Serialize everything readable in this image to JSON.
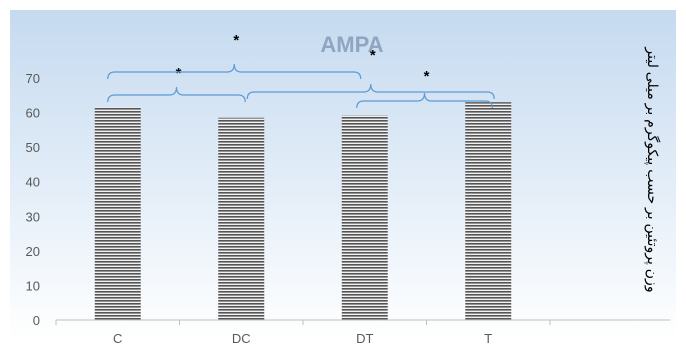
{
  "chart_data": {
    "type": "bar",
    "title": "AMPA",
    "ylabel": "وزن پروتئین بر حسب پیکوگرم بر میلی لیتر",
    "xlabel": "",
    "categories": [
      "C",
      "DC",
      "DT",
      "T"
    ],
    "values": [
      61.5,
      58.5,
      59.2,
      63.0
    ],
    "ylim": [
      0,
      70
    ],
    "yticks": [
      "0",
      "10",
      "20",
      "30",
      "40",
      "50",
      "60",
      "70"
    ],
    "grid": false,
    "legend": "none",
    "significance": [
      {
        "from": "C",
        "to": "DC",
        "label": "*"
      },
      {
        "from": "C",
        "to": "DT",
        "label": "*"
      },
      {
        "from": "DC",
        "to": "T",
        "label": "*"
      },
      {
        "from": "DT",
        "to": "T",
        "label": "*"
      }
    ]
  },
  "colors": {
    "background_top": "#ffffff",
    "plot_gradient_top": "#c5daf0",
    "plot_gradient_bottom": "#ffffff",
    "bar_stripe_dark": "#555555",
    "bar_stripe_light": "#f0f0f0",
    "bracket": "#5b9bd5",
    "title": "#8ea6bf",
    "axis_text": "#595959"
  }
}
